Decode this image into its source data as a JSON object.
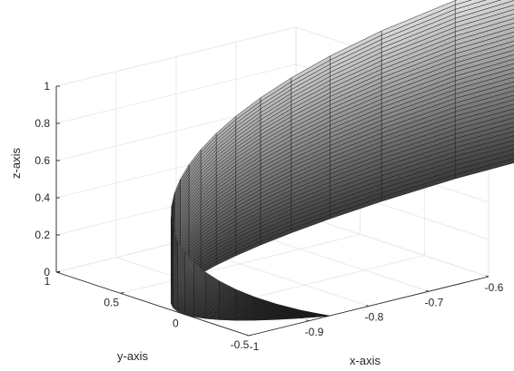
{
  "chart_data": {
    "type": "surface3d",
    "title": "",
    "xlabel": "x-axis",
    "ylabel": "y-axis",
    "zlabel": "z-axis",
    "xlim": [
      -1,
      -0.6
    ],
    "ylim": [
      -0.5,
      1
    ],
    "zlim": [
      0,
      1
    ],
    "xticks": [
      "-1",
      "-0.9",
      "-0.8",
      "-0.7",
      "-0.6"
    ],
    "yticks": [
      "-0.5",
      "0",
      "0.5",
      "1"
    ],
    "zticks": [
      "0",
      "0.2",
      "0.4",
      "0.6",
      "0.8",
      "1"
    ],
    "grid": true,
    "colormap": "gray",
    "surface": {
      "description": "vertical strip x = -sqrt(1 - y^2), height z from 0 to (y+0.5)/2",
      "y_range": [
        -0.5,
        1
      ],
      "z_range": [
        0,
        1
      ],
      "mesh_rows": 40,
      "mesh_cols": 24,
      "colors": {
        "dark": "#3a3a3a",
        "light": "#e6e6e6",
        "edge": "#1c1c1c"
      }
    }
  }
}
